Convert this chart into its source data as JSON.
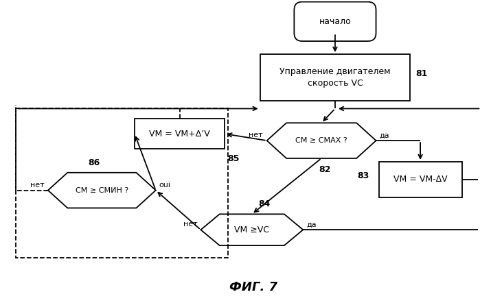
{
  "title": "ФИГ. 7",
  "bg_color": "#ffffff",
  "start_text": "начало",
  "box81_text": "Управление двигателем\nскорость VС",
  "diamond82_text": "СМ ≥ СМАХ ?",
  "box83_text": "VМ = VМ-ΔV",
  "hex84_text": "VМ ≥VС",
  "box85_text": "VМ = VМ+Δ’V",
  "diamond86_text": "СМ ≥ СМИН ?",
  "label81": "81",
  "label82": "82",
  "label83": "83",
  "label84": "84",
  "label85": "85",
  "label86": "86",
  "text_da": "да",
  "text_net": "нет",
  "text_oui": "oui"
}
